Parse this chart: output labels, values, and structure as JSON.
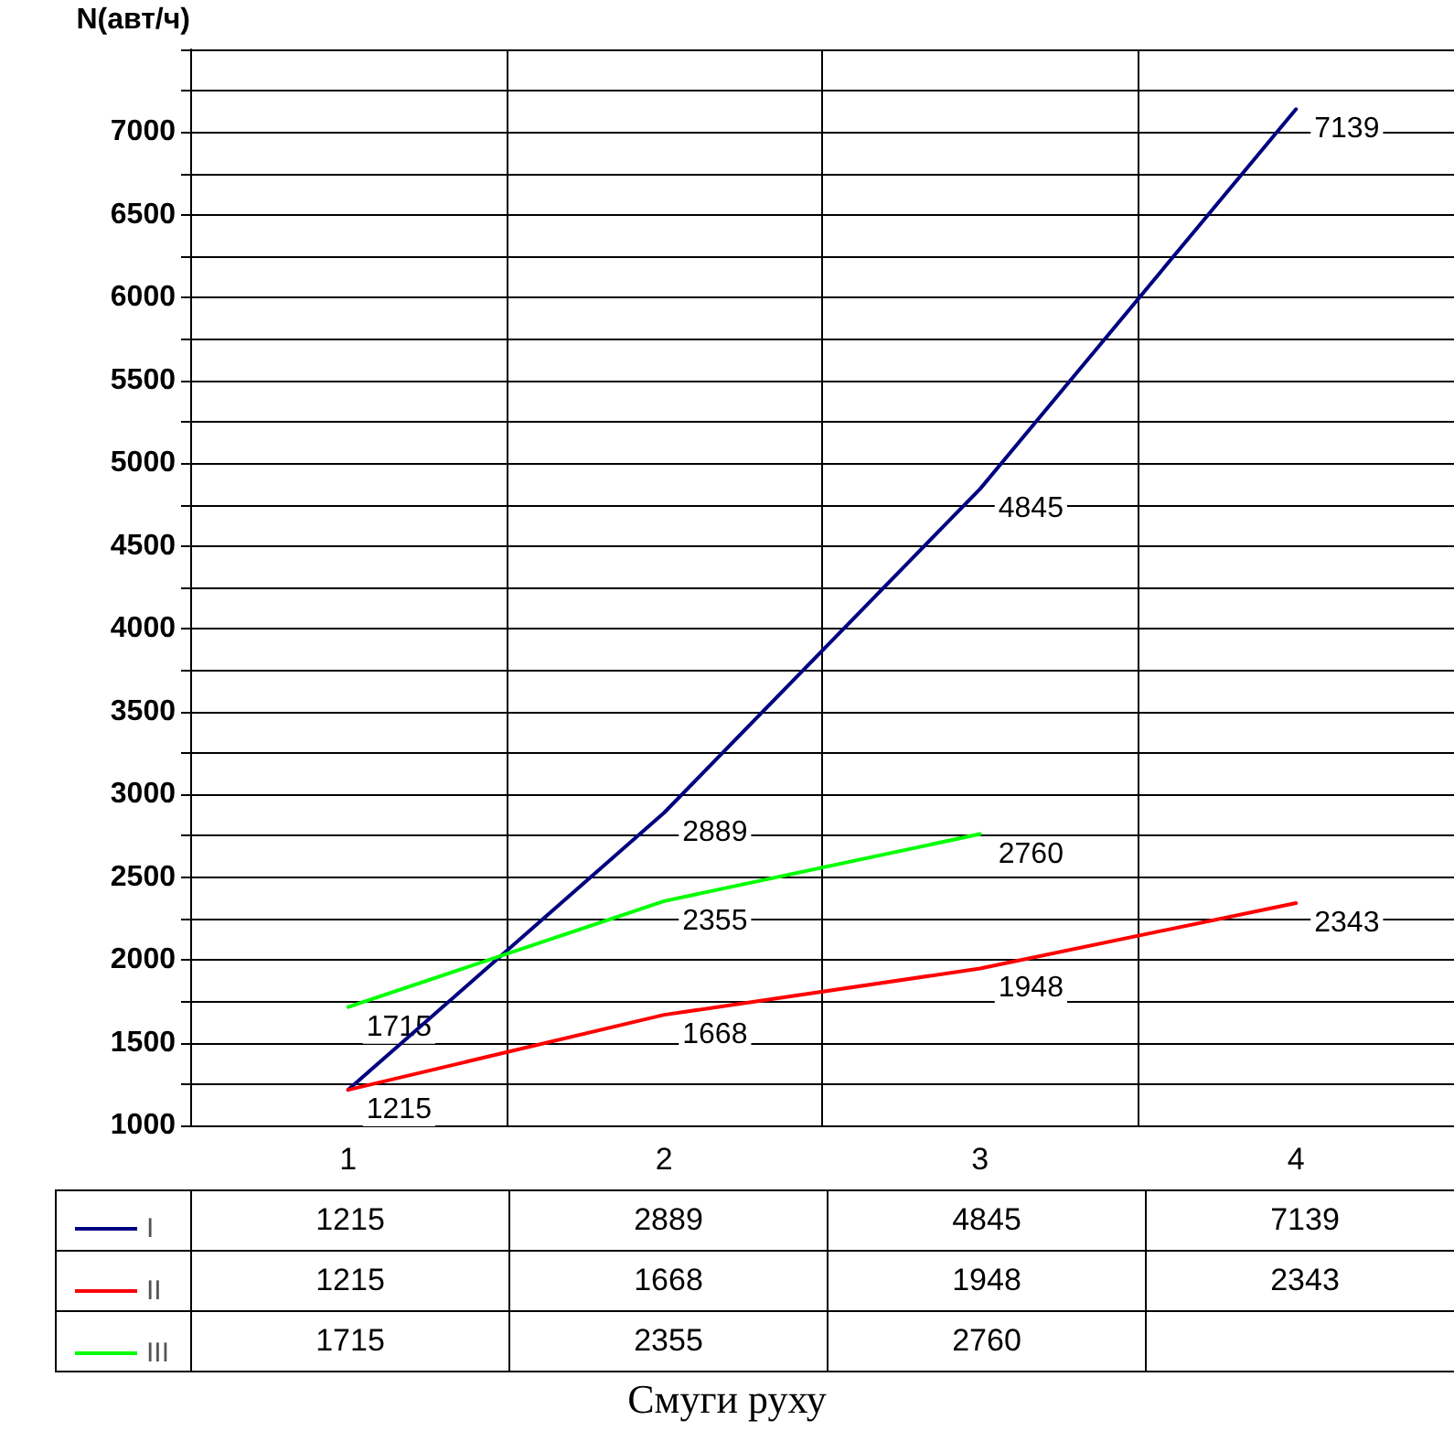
{
  "chart_data": {
    "type": "line",
    "ylabel": "N(авт/ч)",
    "xlabel": "Смуги руху",
    "categories": [
      "1",
      "2",
      "3",
      "4"
    ],
    "series": [
      {
        "name": "I",
        "color": "#000080",
        "values": [
          1215,
          2889,
          4845,
          7139
        ]
      },
      {
        "name": "II",
        "color": "#ff0000",
        "values": [
          1215,
          1668,
          1948,
          2343
        ]
      },
      {
        "name": "III",
        "color": "#00ff00",
        "values": [
          1715,
          2355,
          2760,
          null
        ]
      }
    ],
    "ylim": [
      1000,
      7500
    ],
    "yticks": [
      1000,
      {
        "value": 1250,
        "label": null
      },
      1500,
      {
        "value": 1750,
        "label": null
      },
      2000,
      {
        "value": 2250,
        "label": null
      },
      2500,
      {
        "value": 2750,
        "label": null
      },
      3000,
      {
        "value": 3250,
        "label": null
      },
      3500,
      {
        "value": 3750,
        "label": null
      },
      4000,
      {
        "value": 4250,
        "label": null
      },
      4500,
      {
        "value": 4750,
        "label": null
      },
      5000,
      {
        "value": 5250,
        "label": null
      },
      5500,
      {
        "value": 5750,
        "label": null
      },
      6000,
      {
        "value": 6250,
        "label": null
      },
      6500,
      {
        "value": 6750,
        "label": null
      },
      7000,
      {
        "value": 7250,
        "label": null
      },
      {
        "value": 7500,
        "label": null
      }
    ],
    "annotations": [
      {
        "text": "1215",
        "x": "1",
        "y": 1215
      },
      {
        "text": "2889",
        "x": "2",
        "y": 2889
      },
      {
        "text": "4845",
        "x": "3",
        "y": 4845
      },
      {
        "text": "7139",
        "x": "4",
        "y": 7139
      },
      {
        "text": "1668",
        "x": "2",
        "y": 1668
      },
      {
        "text": "1948",
        "x": "3",
        "y": 1948
      },
      {
        "text": "2343",
        "x": "4",
        "y": 2343
      },
      {
        "text": "1715",
        "x": "1",
        "y": 1715
      },
      {
        "text": "2355",
        "x": "2",
        "y": 2355
      },
      {
        "text": "2760",
        "x": "3",
        "y": 2760
      }
    ],
    "grid": true,
    "legend": "bottom left",
    "marker": "none",
    "line_style": "solid",
    "data_labels": true
  }
}
